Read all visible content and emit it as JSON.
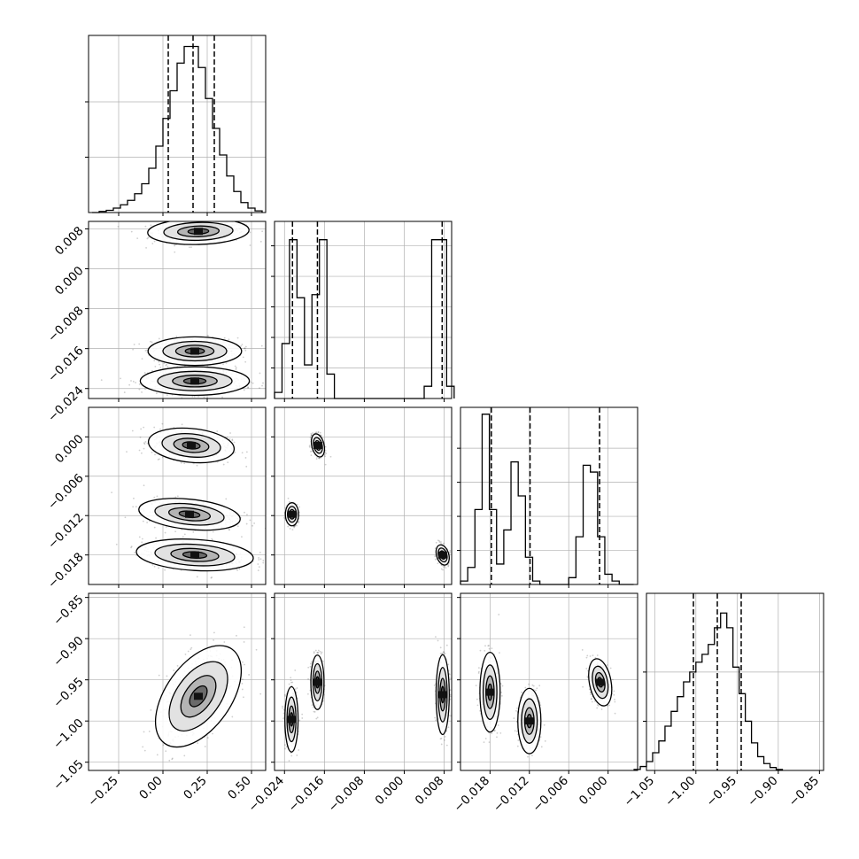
{
  "chart_data": {
    "type": "corner",
    "n_params": 4,
    "grid": true,
    "colors": {
      "line": "#000000",
      "grid": "#b0b0b0",
      "points": "#404040"
    },
    "histograms": [
      {
        "param": 0,
        "bins": [
          -0.4,
          -0.36,
          -0.32,
          -0.28,
          -0.24,
          -0.2,
          -0.16,
          -0.12,
          -0.08,
          -0.04,
          0.0,
          0.04,
          0.08,
          0.12,
          0.16,
          0.2,
          0.24,
          0.28,
          0.32,
          0.36,
          0.4,
          0.44,
          0.48,
          0.52,
          0.56
        ],
        "counts": [
          0,
          2,
          4,
          8,
          14,
          22,
          34,
          52,
          80,
          120,
          170,
          220,
          270,
          300,
          300,
          262,
          206,
          152,
          104,
          66,
          38,
          18,
          8,
          3
        ],
        "quantiles": [
          0.03,
          0.17,
          0.29
        ],
        "ylim": [
          0,
          320
        ],
        "yticks": [
          100,
          200
        ]
      },
      {
        "param": 1,
        "bins": [
          -0.026,
          -0.0245,
          -0.023,
          -0.0215,
          -0.02,
          -0.0185,
          -0.017,
          -0.0155,
          -0.014,
          -0.0125,
          -0.011,
          -0.0095,
          -0.008,
          -0.0065,
          -0.005,
          -0.0035,
          -0.002,
          -0.0005,
          0.001,
          0.0025,
          0.004,
          0.0055,
          0.007,
          0.0085,
          0.01
        ],
        "counts": [
          10,
          90,
          260,
          165,
          55,
          170,
          260,
          40,
          0,
          0,
          0,
          0,
          0,
          0,
          0,
          0,
          0,
          0,
          0,
          0,
          20,
          260,
          260,
          20
        ],
        "quantiles": [
          -0.0224,
          -0.0174,
          0.0076
        ],
        "ylim": [
          0,
          290
        ],
        "yticks": [
          50,
          100,
          150,
          200,
          250
        ]
      },
      {
        "param": 2,
        "bins": [
          -0.0225,
          -0.0214,
          -0.0203,
          -0.0192,
          -0.0181,
          -0.017,
          -0.0159,
          -0.0148,
          -0.0137,
          -0.0126,
          -0.0115,
          -0.0104,
          -0.0093,
          -0.0082,
          -0.0071,
          -0.006,
          -0.0049,
          -0.0038,
          -0.0027,
          -0.0016,
          -0.0005,
          0.0006,
          0.0017,
          0.0028,
          0.0039
        ],
        "counts": [
          5,
          25,
          110,
          250,
          110,
          30,
          80,
          180,
          130,
          40,
          5,
          0,
          0,
          0,
          0,
          10,
          70,
          175,
          165,
          70,
          15,
          5,
          0,
          0
        ],
        "quantiles": [
          -0.0178,
          -0.0119,
          -0.0013
        ],
        "ylim": [
          0,
          260
        ],
        "yticks": [
          50,
          100,
          150,
          200
        ]
      },
      {
        "param": 3,
        "bins": [
          -1.075,
          -1.0675,
          -1.06,
          -1.0525,
          -1.045,
          -1.0375,
          -1.03,
          -1.0225,
          -1.015,
          -1.0075,
          -1.0,
          -0.9925,
          -0.985,
          -0.9775,
          -0.97,
          -0.9625,
          -0.955,
          -0.9475,
          -0.94,
          -0.9325,
          -0.925,
          -0.9175,
          -0.91,
          -0.9025,
          -0.895
        ],
        "counts": [
          1,
          4,
          9,
          18,
          30,
          45,
          60,
          75,
          90,
          100,
          110,
          118,
          128,
          145,
          160,
          145,
          105,
          78,
          50,
          28,
          14,
          7,
          3,
          1
        ],
        "quantiles": [
          -1.003,
          -0.974,
          -0.945
        ],
        "ylim": [
          0,
          180
        ],
        "yticks": [
          50,
          100
        ]
      }
    ],
    "pairs": [
      {
        "x": 0,
        "y": 1,
        "blobs": [
          {
            "cx": 0.2,
            "cy": 0.0075,
            "sx": 0.13,
            "sy": 0.0012,
            "rho": 0.1
          },
          {
            "cx": 0.18,
            "cy": -0.0165,
            "sx": 0.12,
            "sy": 0.0013,
            "rho": 0
          },
          {
            "cx": 0.18,
            "cy": -0.0225,
            "sx": 0.14,
            "sy": 0.0013,
            "rho": 0
          }
        ]
      },
      {
        "x": 0,
        "y": 2,
        "blobs": [
          {
            "cx": 0.16,
            "cy": -0.0013,
            "sx": 0.11,
            "sy": 0.0012,
            "rho": -0.2
          },
          {
            "cx": 0.15,
            "cy": -0.0118,
            "sx": 0.13,
            "sy": 0.0011,
            "rho": -0.3
          },
          {
            "cx": 0.18,
            "cy": -0.018,
            "sx": 0.15,
            "sy": 0.0011,
            "rho": -0.2
          }
        ]
      },
      {
        "x": 0,
        "y": 3,
        "blobs": [
          {
            "cx": 0.2,
            "cy": -0.97,
            "sx": 0.11,
            "sy": 0.028,
            "rho": 0.5
          }
        ]
      },
      {
        "x": 1,
        "y": 2,
        "blobs": [
          {
            "cx": -0.0173,
            "cy": -0.0013,
            "sx": 0.0006,
            "sy": 0.0008,
            "rho": -0.3
          },
          {
            "cx": -0.0225,
            "cy": -0.0118,
            "sx": 0.0006,
            "sy": 0.0008,
            "rho": 0
          },
          {
            "cx": 0.0077,
            "cy": -0.018,
            "sx": 0.0006,
            "sy": 0.0007,
            "rho": -0.3
          }
        ]
      },
      {
        "x": 1,
        "y": 3,
        "blobs": [
          {
            "cx": -0.0226,
            "cy": -0.998,
            "sx": 0.0006,
            "sy": 0.018,
            "rho": 0
          },
          {
            "cx": -0.0174,
            "cy": -0.953,
            "sx": 0.0006,
            "sy": 0.015,
            "rho": 0
          },
          {
            "cx": 0.0077,
            "cy": -0.968,
            "sx": 0.0006,
            "sy": 0.022,
            "rho": 0
          }
        ]
      },
      {
        "x": 2,
        "y": 3,
        "blobs": [
          {
            "cx": -0.018,
            "cy": -0.965,
            "sx": 0.0007,
            "sy": 0.022,
            "rho": 0
          },
          {
            "cx": -0.012,
            "cy": -1.0,
            "sx": 0.0008,
            "sy": 0.018,
            "rho": 0
          },
          {
            "cx": -0.0012,
            "cy": -0.953,
            "sx": 0.0008,
            "sy": 0.013,
            "rho": -0.3
          }
        ]
      }
    ],
    "axes": [
      {
        "param": 0,
        "lim": [
          -0.42,
          0.58
        ],
        "ticks": [
          -0.25,
          0.0,
          0.25,
          0.5
        ],
        "ticklabels": [
          "−0.25",
          "0.00",
          "0.25",
          "0.50"
        ]
      },
      {
        "param": 1,
        "lim": [
          -0.026,
          0.0095
        ],
        "ticks": [
          -0.024,
          -0.016,
          -0.008,
          0.0,
          0.008
        ],
        "ticklabels": [
          "−0.024",
          "−0.016",
          "−0.008",
          "0.000",
          "0.008"
        ]
      },
      {
        "param": 2,
        "lim": [
          -0.0225,
          0.0045
        ],
        "ticks": [
          -0.018,
          -0.012,
          -0.006,
          0.0
        ],
        "ticklabels": [
          "−0.018",
          "−0.012",
          "−0.006",
          "0.000"
        ]
      },
      {
        "param": 3,
        "lim": [
          -1.06,
          -0.845
        ],
        "ticks": [
          -1.05,
          -1.0,
          -0.95,
          -0.9,
          -0.85
        ],
        "ticklabels": [
          "−1.05",
          "−1.00",
          "−0.95",
          "−0.90",
          "−0.85"
        ]
      }
    ]
  }
}
